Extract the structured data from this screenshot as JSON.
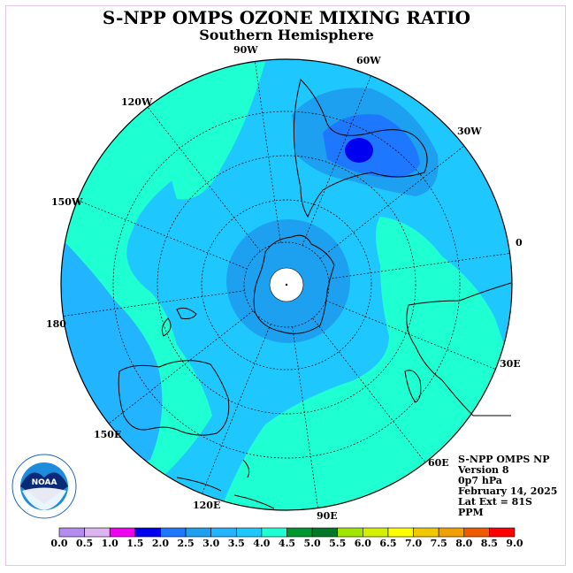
{
  "title": "S-NPP OMPS OZONE MIXING RATIO",
  "subtitle": "Southern Hemisphere",
  "lon_labels": {
    "w90": "90W",
    "w60": "60W",
    "w30": "30W",
    "e0": "0",
    "e30": "30E",
    "e60": "60E",
    "e90": "90E",
    "e120": "120E",
    "e150": "150E",
    "d180": "180",
    "w150": "150W",
    "w120": "120W"
  },
  "info": {
    "line1": "S-NPP OMPS NP",
    "line2": "Version 8",
    "line3": "0p7 hPa",
    "line4": "February 14, 2025",
    "line5": "Lat Ext = 81S",
    "line6": "PPM"
  },
  "logo_text": "NOAA",
  "logo_ring_text": "NATIONAL OCEANIC AND ATMOSPHERIC ADMINISTRATION U.S. DEPARTMENT OF COMMERCE",
  "colorbar": {
    "labels": [
      "0.0",
      "0.5",
      "1.0",
      "1.5",
      "2.0",
      "2.5",
      "3.0",
      "3.5",
      "4.0",
      "4.5",
      "5.0",
      "5.5",
      "6.0",
      "6.5",
      "7.0",
      "7.5",
      "8.0",
      "8.5",
      "9.0"
    ],
    "colors": [
      "#b48cf0",
      "#dcb4f0",
      "#f000f0",
      "#0000f0",
      "#1e78ff",
      "#1ea0f0",
      "#23b4ff",
      "#1ec8ff",
      "#1effd2",
      "#009632",
      "#007828",
      "#a0e600",
      "#d2f000",
      "#ffff00",
      "#f0c800",
      "#f0a000",
      "#f05a00",
      "#ff0000",
      "#785a3c"
    ]
  },
  "map_colors": {
    "level_3_0": "#23b4ff",
    "level_3_5": "#1ec8ff",
    "level_4_0": "#1effd2",
    "level_2_5": "#1ea0f0",
    "level_2_0": "#1e78ff",
    "level_1_5": "#0000f0",
    "pole_hole": "#ffffff"
  }
}
